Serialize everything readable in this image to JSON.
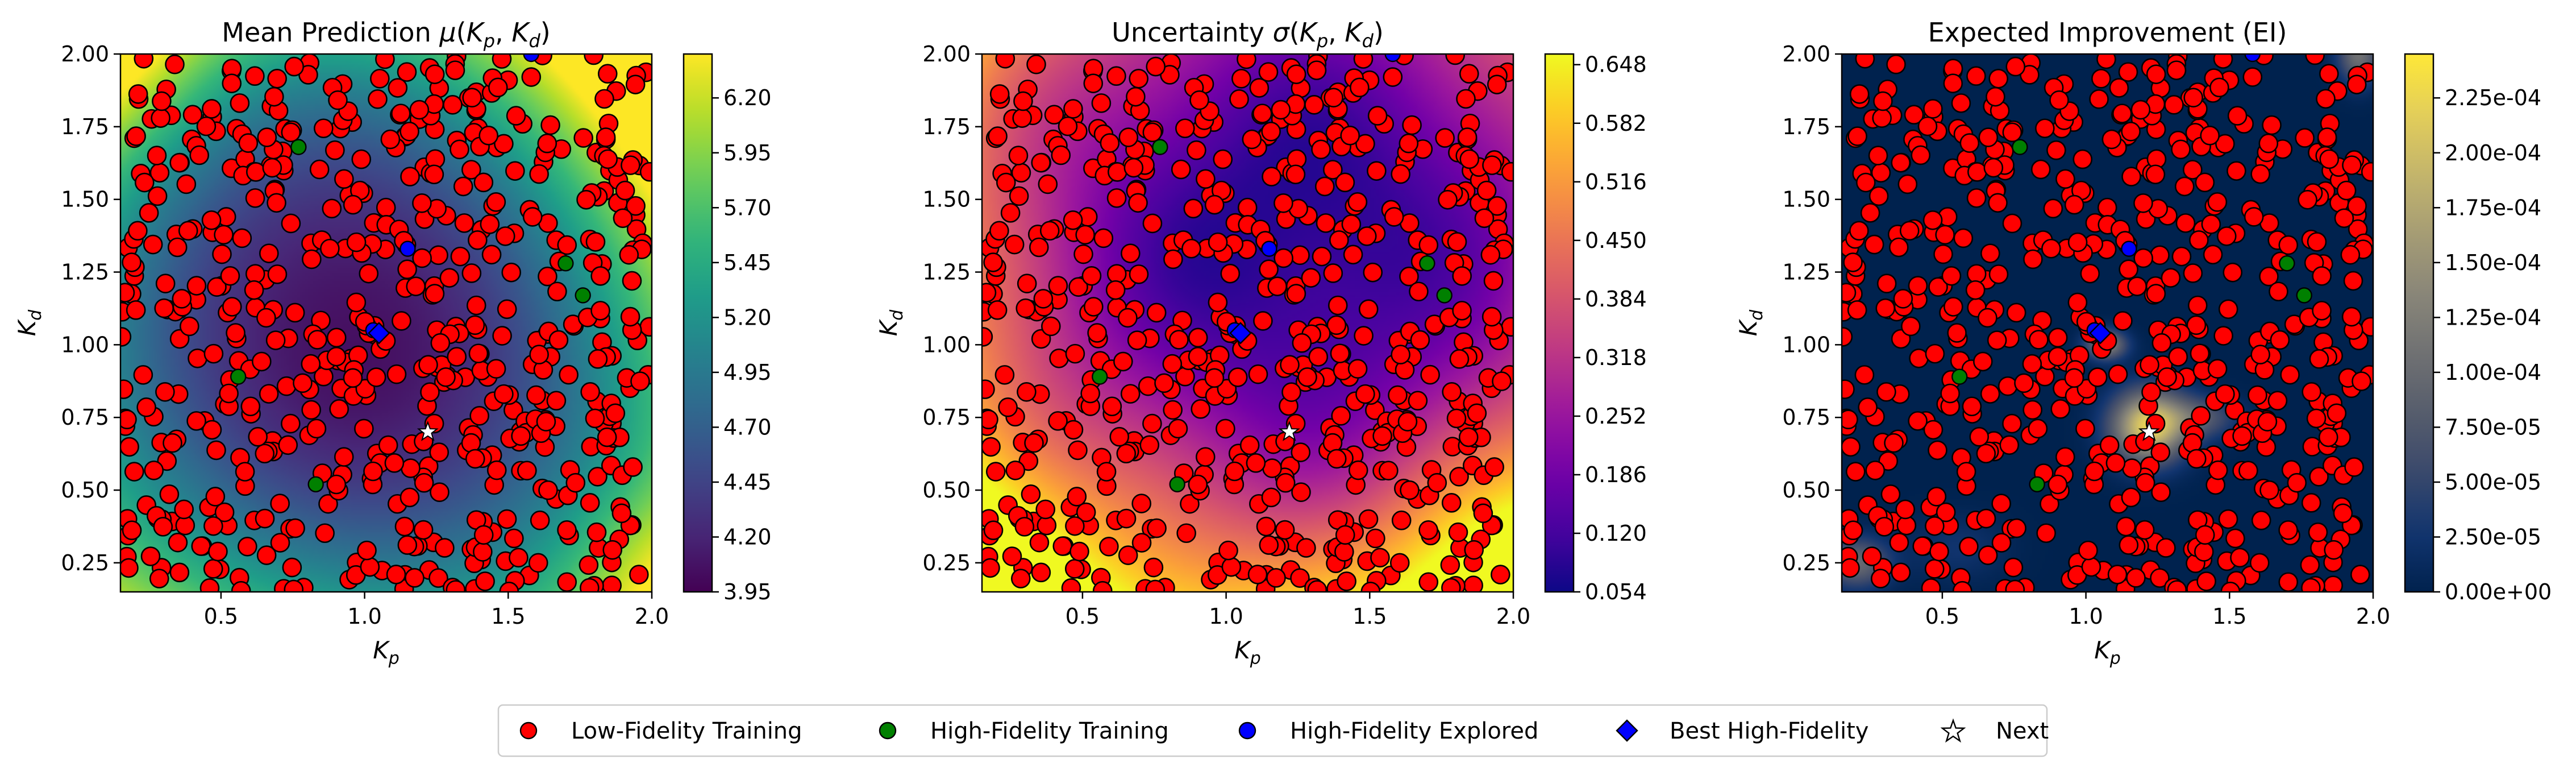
{
  "chart_data": [
    {
      "type": "heatmap",
      "title": "Mean Prediction μ(Kp, Kd)",
      "title_parts": [
        "Mean Prediction ",
        "μ",
        "(",
        "K",
        "p",
        ", ",
        "K",
        "d",
        ")"
      ],
      "xlabel": "Kp",
      "ylabel": "Kd",
      "xlim": [
        0.15,
        2.0
      ],
      "ylim": [
        0.15,
        2.0
      ],
      "xticks": [
        "0.5",
        "1.0",
        "1.5",
        "2.0"
      ],
      "yticks": [
        "0.25",
        "0.50",
        "0.75",
        "1.00",
        "1.25",
        "1.50",
        "1.75",
        "2.00"
      ],
      "colormap": "viridis",
      "colorbar_range": [
        3.95,
        6.4
      ],
      "colorbar_ticks": [
        "3.95",
        "4.20",
        "4.45",
        "4.70",
        "4.95",
        "5.20",
        "5.45",
        "5.70",
        "5.95",
        "6.20"
      ]
    },
    {
      "type": "heatmap",
      "title": "Uncertainty σ(Kp, Kd)",
      "title_parts": [
        "Uncertainty ",
        "σ",
        "(",
        "K",
        "p",
        ", ",
        "K",
        "d",
        ")"
      ],
      "xlabel": "Kp",
      "ylabel": "Kd",
      "xlim": [
        0.15,
        2.0
      ],
      "ylim": [
        0.15,
        2.0
      ],
      "xticks": [
        "0.5",
        "1.0",
        "1.5",
        "2.0"
      ],
      "yticks": [
        "0.25",
        "0.50",
        "0.75",
        "1.00",
        "1.25",
        "1.50",
        "1.75",
        "2.00"
      ],
      "colormap": "plasma",
      "colorbar_range": [
        0.054,
        0.66
      ],
      "colorbar_ticks": [
        "0.054",
        "0.120",
        "0.186",
        "0.252",
        "0.318",
        "0.384",
        "0.450",
        "0.516",
        "0.582",
        "0.648"
      ]
    },
    {
      "type": "heatmap",
      "title": "Expected Improvement (EI)",
      "title_parts": [
        "Expected Improvement (EI)"
      ],
      "xlabel": "Kp",
      "ylabel": "Kd",
      "xlim": [
        0.15,
        2.0
      ],
      "ylim": [
        0.15,
        2.0
      ],
      "xticks": [
        "0.5",
        "1.0",
        "1.5",
        "2.0"
      ],
      "yticks": [
        "0.25",
        "0.50",
        "0.75",
        "1.00",
        "1.25",
        "1.50",
        "1.75",
        "2.00"
      ],
      "colormap": "cividis",
      "colorbar_range": [
        0.0,
        0.000245
      ],
      "colorbar_ticks": [
        "0.00e+00",
        "2.50e-05",
        "5.00e-05",
        "7.50e-05",
        "1.00e-04",
        "1.25e-04",
        "1.50e-04",
        "1.75e-04",
        "2.00e-04",
        "2.25e-04"
      ]
    }
  ],
  "points": {
    "high_fidelity_training": [
      [
        0.77,
        1.68
      ],
      [
        0.56,
        0.89
      ],
      [
        0.83,
        0.52
      ],
      [
        1.7,
        1.28
      ],
      [
        1.76,
        1.17
      ]
    ],
    "high_fidelity_explored": [
      [
        1.15,
        1.33
      ],
      [
        1.03,
        1.05
      ],
      [
        1.58,
        2.0
      ]
    ],
    "best_high_fidelity": [
      [
        1.05,
        1.04
      ]
    ],
    "next": [
      1.22,
      0.7
    ],
    "low_fidelity_count": 600
  },
  "legend": {
    "placement": "bottom-center",
    "items": [
      "Low-Fidelity Training",
      "High-Fidelity Training",
      "High-Fidelity Explored",
      "Best High-Fidelity",
      "Next"
    ]
  },
  "colors": {
    "low_fidelity": "#ff0000",
    "high_fidelity": "#008000",
    "explored": "#0000ff",
    "best": "#0000ff",
    "next": "#ffffff",
    "edge": "#000000"
  }
}
